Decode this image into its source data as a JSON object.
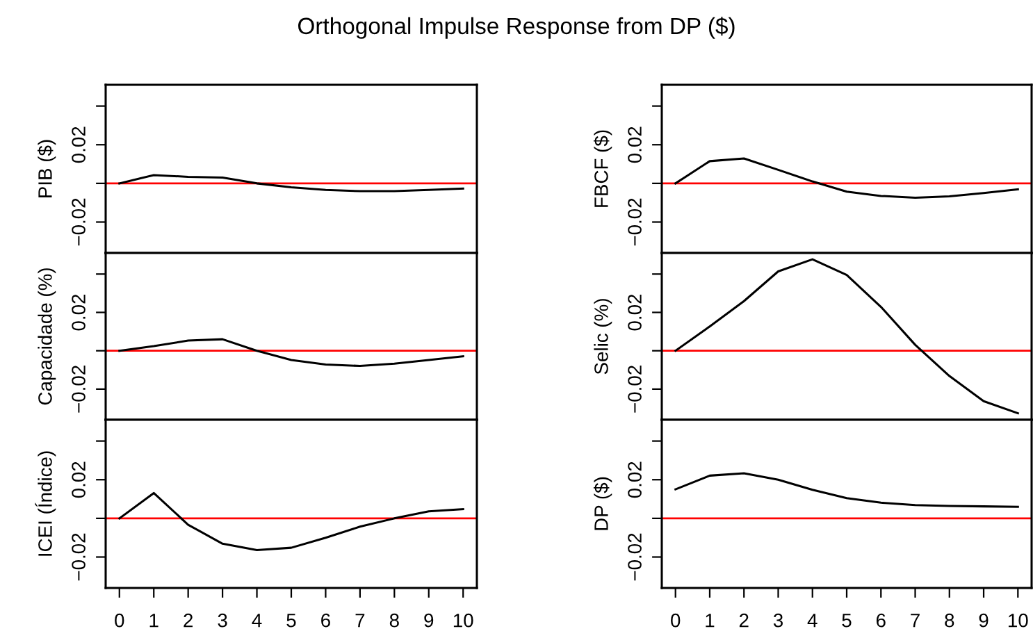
{
  "chart_data": [
    {
      "type": "line",
      "title": "Orthogonal Impulse Response from DP ($)",
      "ylabel": "PIB ($)",
      "x": [
        0,
        1,
        2,
        3,
        4,
        5,
        6,
        7,
        8,
        9,
        10
      ],
      "values": [
        0,
        0.0043,
        0.0034,
        0.003,
        0,
        -0.002,
        -0.0034,
        -0.004,
        -0.004,
        -0.0034,
        -0.0027
      ],
      "color": "#000000",
      "xlim": [
        -0.4,
        10.4
      ],
      "xticks": [
        0,
        1,
        2,
        3,
        4,
        5,
        6,
        7,
        8,
        9,
        10
      ],
      "ylim": [
        -0.036,
        0.051
      ],
      "yticks": [
        {
          "value": 0.04,
          "label": null
        },
        {
          "value": 0.02,
          "label": "0.02"
        },
        {
          "value": 0,
          "label": null
        },
        {
          "value": -0.02,
          "label": "−0.02"
        }
      ],
      "ref_lines": [
        {
          "axis": "y",
          "value": 0,
          "color": "#ff0000"
        }
      ],
      "tick_labels": "y",
      "grid": false,
      "legend": false
    },
    {
      "type": "line",
      "ylabel": "FBCF ($)",
      "x": [
        0,
        1,
        2,
        3,
        4,
        5,
        6,
        7,
        8,
        9,
        10
      ],
      "values": [
        0,
        0.0115,
        0.0129,
        0.007,
        0.001,
        -0.0043,
        -0.0065,
        -0.0074,
        -0.0067,
        -0.005,
        -0.0031
      ],
      "color": "#000000",
      "xlim": [
        -0.4,
        10.4
      ],
      "xticks": [
        0,
        1,
        2,
        3,
        4,
        5,
        6,
        7,
        8,
        9,
        10
      ],
      "ylim": [
        -0.036,
        0.051
      ],
      "yticks": [
        {
          "value": 0.04,
          "label": null
        },
        {
          "value": 0.02,
          "label": "0.02"
        },
        {
          "value": 0,
          "label": null
        },
        {
          "value": -0.02,
          "label": "−0.02"
        }
      ],
      "ref_lines": [
        {
          "axis": "y",
          "value": 0,
          "color": "#ff0000"
        }
      ],
      "tick_labels": "y",
      "grid": false,
      "legend": false
    },
    {
      "type": "line",
      "ylabel": "Capacidade (%)",
      "x": [
        0,
        1,
        2,
        3,
        4,
        5,
        6,
        7,
        8,
        9,
        10
      ],
      "values": [
        0,
        0.0024,
        0.0053,
        0.006,
        0,
        -0.0048,
        -0.0072,
        -0.0079,
        -0.0067,
        -0.0048,
        -0.0029
      ],
      "color": "#000000",
      "xlim": [
        -0.4,
        10.4
      ],
      "xticks": [
        0,
        1,
        2,
        3,
        4,
        5,
        6,
        7,
        8,
        9,
        10
      ],
      "ylim": [
        -0.036,
        0.051
      ],
      "yticks": [
        {
          "value": 0.04,
          "label": null
        },
        {
          "value": 0.02,
          "label": "0.02"
        },
        {
          "value": 0,
          "label": null
        },
        {
          "value": -0.02,
          "label": "−0.02"
        }
      ],
      "ref_lines": [
        {
          "axis": "y",
          "value": 0,
          "color": "#ff0000"
        }
      ],
      "tick_labels": "y",
      "grid": false,
      "legend": false
    },
    {
      "type": "line",
      "ylabel": "Selic (%)",
      "x": [
        0,
        1,
        2,
        3,
        4,
        5,
        6,
        7,
        8,
        9,
        10
      ],
      "values": [
        0,
        0.0127,
        0.0259,
        0.0414,
        0.0477,
        0.0395,
        0.0229,
        0.0031,
        -0.0132,
        -0.0263,
        -0.0326
      ],
      "color": "#000000",
      "xlim": [
        -0.4,
        10.4
      ],
      "xticks": [
        0,
        1,
        2,
        3,
        4,
        5,
        6,
        7,
        8,
        9,
        10
      ],
      "ylim": [
        -0.036,
        0.051
      ],
      "yticks": [
        {
          "value": 0.04,
          "label": null
        },
        {
          "value": 0.02,
          "label": "0.02"
        },
        {
          "value": 0,
          "label": null
        },
        {
          "value": -0.02,
          "label": "−0.02"
        }
      ],
      "ref_lines": [
        {
          "axis": "y",
          "value": 0,
          "color": "#ff0000"
        }
      ],
      "tick_labels": "y",
      "grid": false,
      "legend": false
    },
    {
      "type": "line",
      "ylabel": "ICEI (Índice)",
      "x": [
        0,
        1,
        2,
        3,
        4,
        5,
        6,
        7,
        8,
        9,
        10
      ],
      "values": [
        0,
        0.0131,
        -0.0033,
        -0.0131,
        -0.0164,
        -0.0152,
        -0.01,
        -0.0043,
        0,
        0.0036,
        0.0048
      ],
      "color": "#000000",
      "xlim": [
        -0.4,
        10.4
      ],
      "xticks": [
        0,
        1,
        2,
        3,
        4,
        5,
        6,
        7,
        8,
        9,
        10
      ],
      "ylim": [
        -0.036,
        0.051
      ],
      "yticks": [
        {
          "value": 0.04,
          "label": null
        },
        {
          "value": 0.02,
          "label": "0.02"
        },
        {
          "value": 0,
          "label": null
        },
        {
          "value": -0.02,
          "label": "−0.02"
        }
      ],
      "ref_lines": [
        {
          "axis": "y",
          "value": 0,
          "color": "#ff0000"
        }
      ],
      "grid": false,
      "legend": false
    },
    {
      "type": "line",
      "ylabel": "DP ($)",
      "x": [
        0,
        1,
        2,
        3,
        4,
        5,
        6,
        7,
        8,
        9,
        10
      ],
      "values": [
        0.015,
        0.0221,
        0.0233,
        0.02,
        0.0148,
        0.0105,
        0.0081,
        0.0069,
        0.0064,
        0.0062,
        0.006
      ],
      "color": "#000000",
      "xlim": [
        -0.4,
        10.4
      ],
      "xticks": [
        0,
        1,
        2,
        3,
        4,
        5,
        6,
        7,
        8,
        9,
        10
      ],
      "ylim": [
        -0.036,
        0.051
      ],
      "yticks": [
        {
          "value": 0.04,
          "label": null
        },
        {
          "value": 0.02,
          "label": "0.02"
        },
        {
          "value": 0,
          "label": null
        },
        {
          "value": -0.02,
          "label": "−0.02"
        }
      ],
      "ref_lines": [
        {
          "axis": "y",
          "value": 0,
          "color": "#ff0000"
        }
      ],
      "grid": false,
      "legend": false
    }
  ]
}
